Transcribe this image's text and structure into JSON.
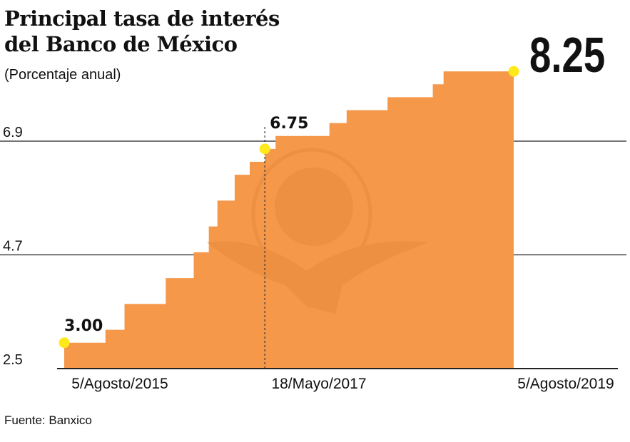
{
  "chart_data": {
    "type": "area",
    "title": [
      "Principal tasa de interés",
      "del Banco de México"
    ],
    "subtitle": "(Porcentaje anual)",
    "source": "Fuente: Banxico",
    "ylim": [
      2.5,
      8.5
    ],
    "yticks": [
      {
        "value": 2.5,
        "label": "2.5"
      },
      {
        "value": 4.7,
        "label": "4.7"
      },
      {
        "value": 6.9,
        "label": "6.9"
      }
    ],
    "xlim": [
      "2015-08-05",
      "2019-08-05"
    ],
    "xticks": [
      {
        "date": "2015-08-05",
        "label": "5/Agosto/2015"
      },
      {
        "date": "2017-05-18",
        "label": "18/Mayo/2017"
      },
      {
        "date": "2019-08-05",
        "label": "5/Agosto/2019"
      }
    ],
    "series": [
      {
        "name": "Tasa de interés",
        "steps": [
          {
            "date": "2015-08-05",
            "value": 3.0
          },
          {
            "date": "2015-12-17",
            "value": 3.25
          },
          {
            "date": "2016-02-17",
            "value": 3.75
          },
          {
            "date": "2016-06-30",
            "value": 4.25
          },
          {
            "date": "2016-09-29",
            "value": 4.75
          },
          {
            "date": "2016-11-17",
            "value": 5.25
          },
          {
            "date": "2016-12-15",
            "value": 5.75
          },
          {
            "date": "2017-02-09",
            "value": 6.25
          },
          {
            "date": "2017-03-30",
            "value": 6.5
          },
          {
            "date": "2017-05-18",
            "value": 6.75
          },
          {
            "date": "2017-06-22",
            "value": 7.0
          },
          {
            "date": "2017-12-14",
            "value": 7.25
          },
          {
            "date": "2018-02-08",
            "value": 7.5
          },
          {
            "date": "2018-06-21",
            "value": 7.75
          },
          {
            "date": "2018-11-15",
            "value": 8.0
          },
          {
            "date": "2018-12-20",
            "value": 8.25
          }
        ],
        "end_date": "2019-08-05"
      }
    ],
    "annotations": [
      {
        "date": "2015-08-05",
        "value": 3.0,
        "label": "3.00"
      },
      {
        "date": "2017-05-18",
        "value": 6.75,
        "label": "6.75",
        "dashed_line": true
      },
      {
        "date": "2019-08-05",
        "value": 8.25,
        "label": "8.25",
        "large": true
      }
    ],
    "colors": {
      "fill": "#F59849",
      "marker": "#FFE91A",
      "grid": "#222222",
      "watermark": "#E88A3E"
    }
  }
}
